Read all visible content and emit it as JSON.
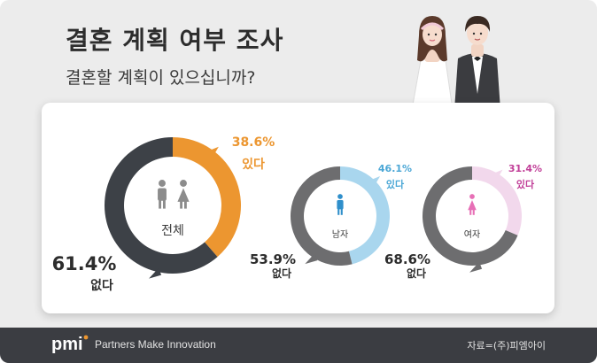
{
  "header": {
    "title": "결혼 계획 여부 조사",
    "subtitle": "결혼할 계획이 있으십니까?"
  },
  "chart_data": [
    {
      "type": "pie",
      "center_label": "전체",
      "categories": [
        "있다",
        "없다"
      ],
      "values": [
        38.6,
        61.4
      ],
      "value_labels": [
        "38.6%",
        "61.4%"
      ],
      "colors": [
        "#ec9630",
        "#3d4147"
      ]
    },
    {
      "type": "pie",
      "center_label": "남자",
      "categories": [
        "있다",
        "없다"
      ],
      "values": [
        46.1,
        53.9
      ],
      "value_labels": [
        "46.1%",
        "53.9%"
      ],
      "colors": [
        "#a9d6ee",
        "#6d6d6f"
      ]
    },
    {
      "type": "pie",
      "center_label": "여자",
      "categories": [
        "있다",
        "없다"
      ],
      "values": [
        31.4,
        68.6
      ],
      "value_labels": [
        "31.4%",
        "68.6%"
      ],
      "colors": [
        "#f2d8ec",
        "#6d6d6f"
      ]
    }
  ],
  "label_colors": {
    "total_yes": "#ec9630",
    "male_yes": "#4ba7d6",
    "female_yes": "#c13f98",
    "no": "#2d2d2d"
  },
  "icons": {
    "couple": "bride-and-groom-illustration",
    "total": "man-and-woman-icon",
    "male": "man-icon",
    "female": "woman-icon",
    "brand": "pmi-logo"
  },
  "footer": {
    "brand": "pmi",
    "tagline": "Partners Make Innovation",
    "source": "자료=(주)피엠아이"
  }
}
